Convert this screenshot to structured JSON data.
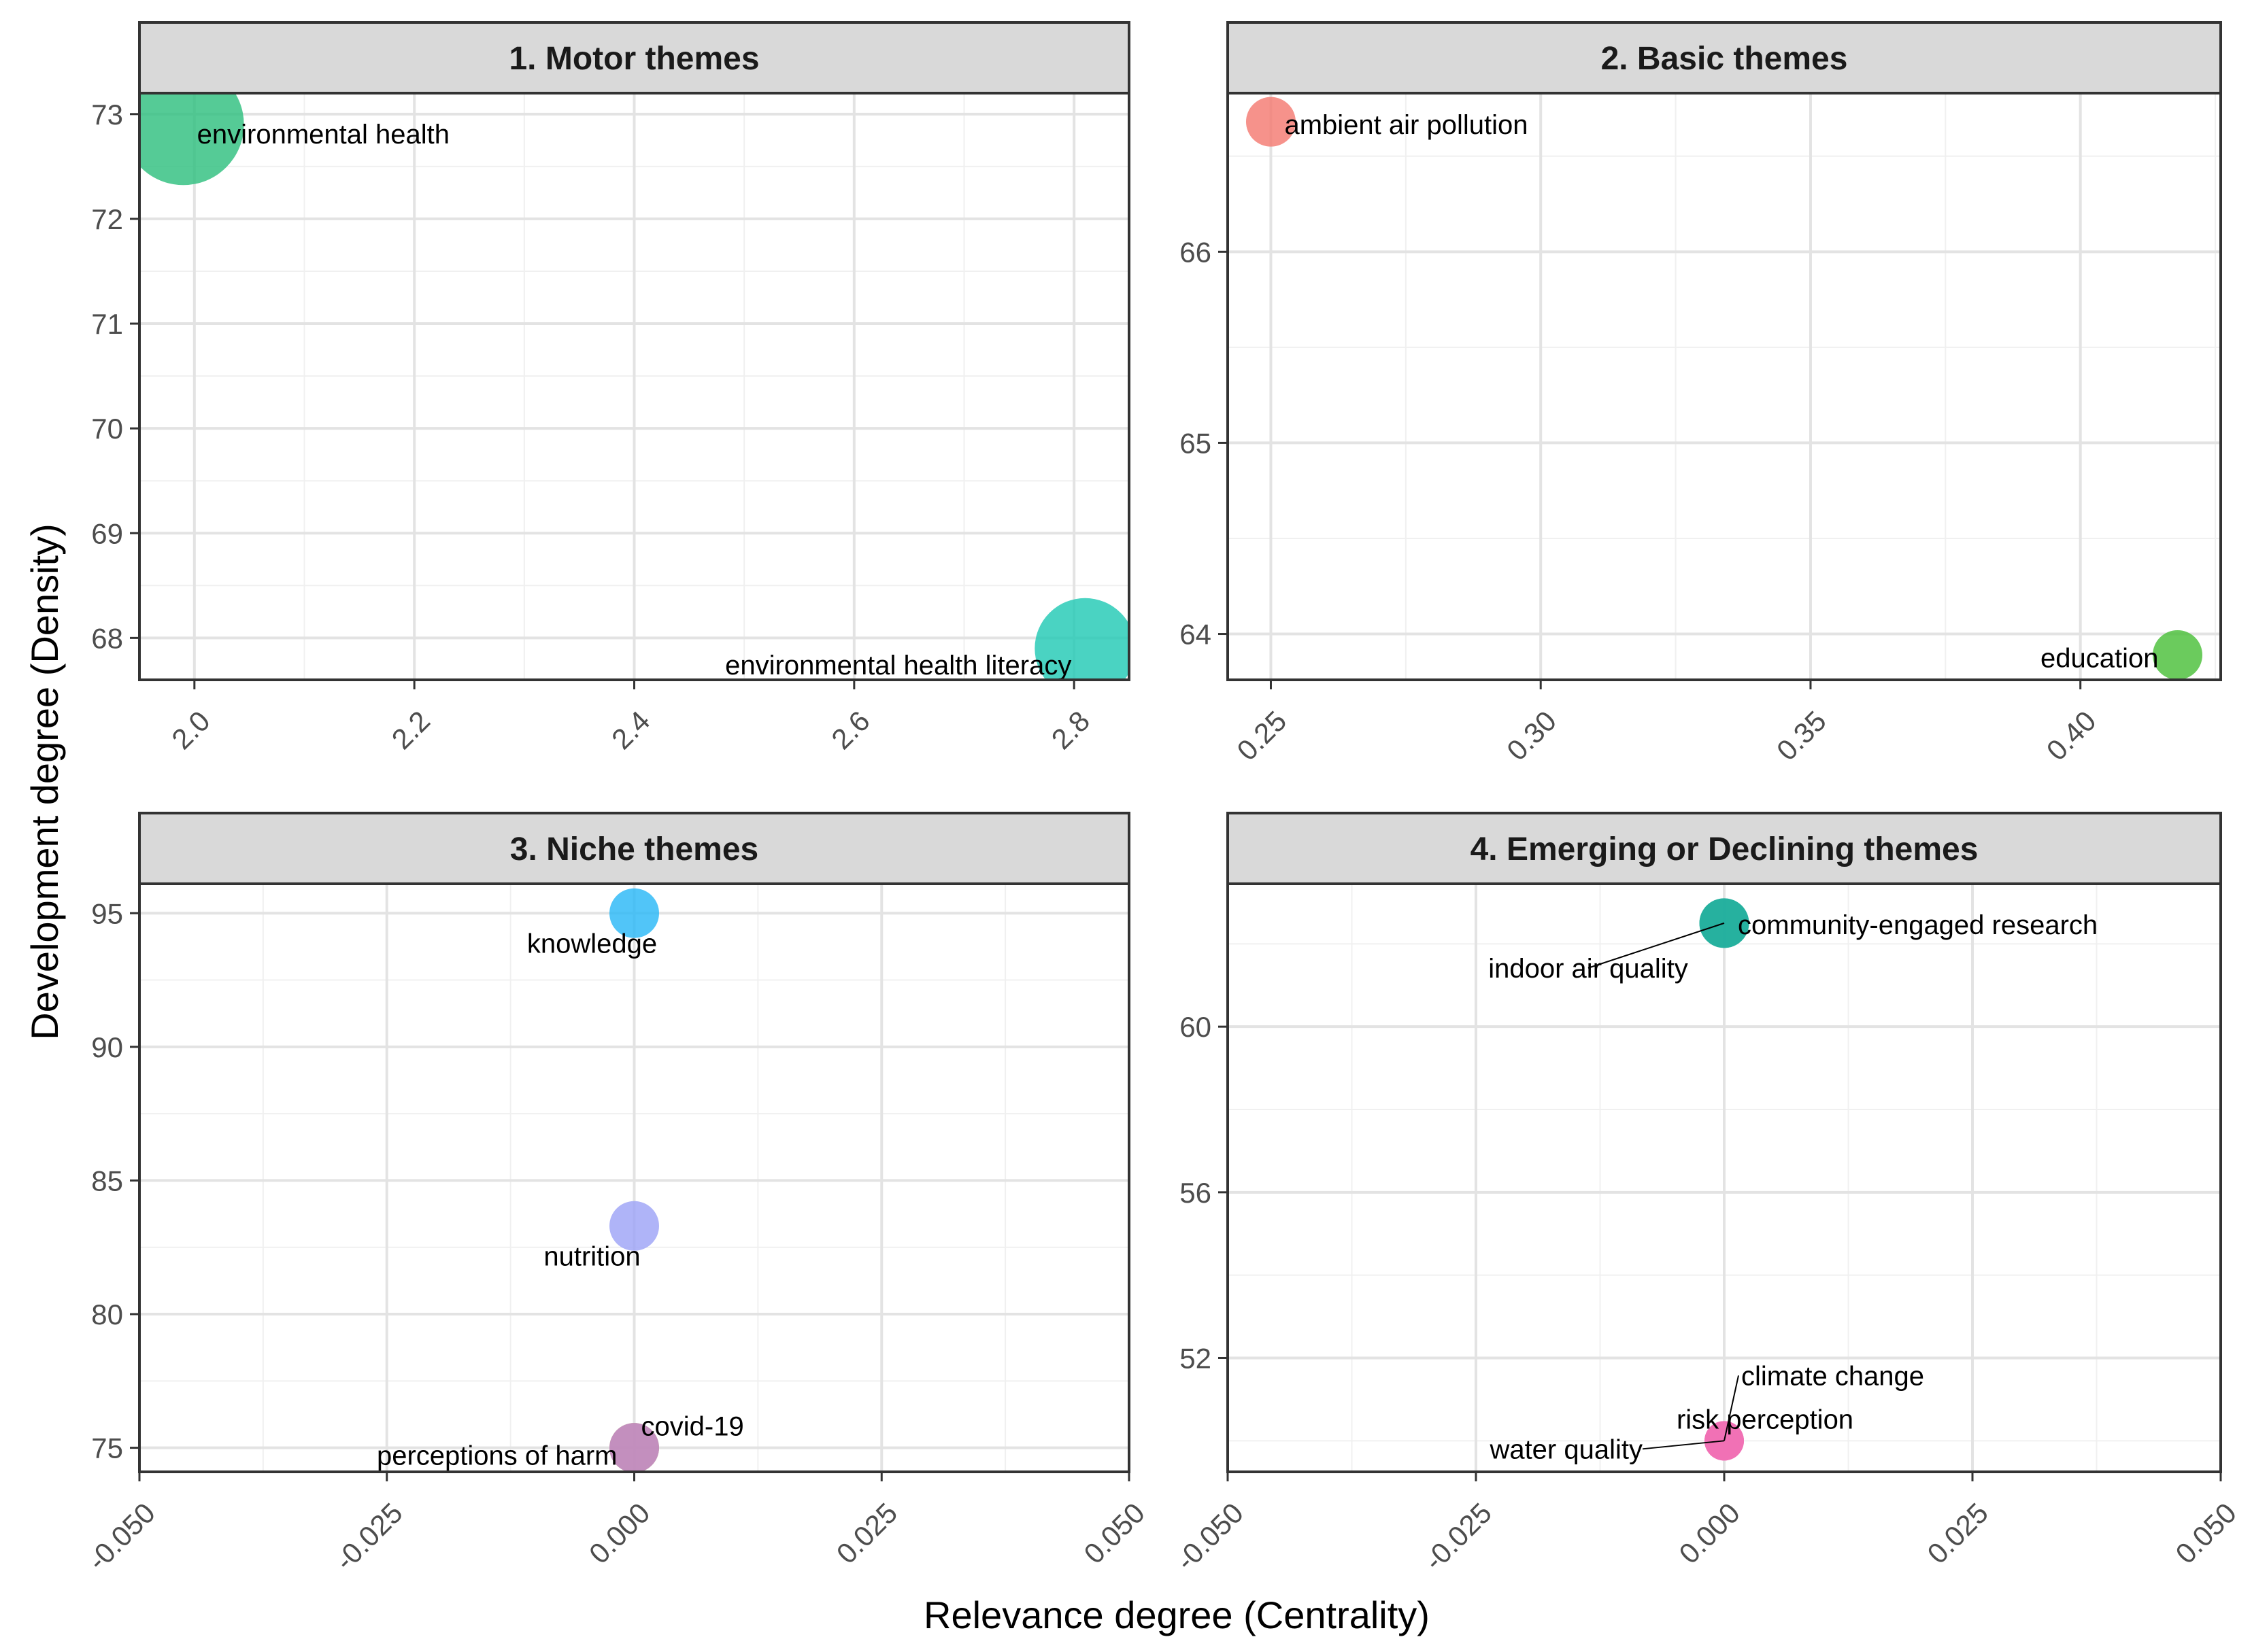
{
  "chart_data": {
    "type": "scatter",
    "xlabel": "Relevance degree (Centrality)",
    "ylabel": "Development degree (Density)",
    "grid": true,
    "legend": "none",
    "panels": [
      {
        "title": "1. Motor themes",
        "xlim": [
          1.95,
          2.85
        ],
        "ylim": [
          67.6,
          73.2
        ],
        "xticks": [
          2.0,
          2.2,
          2.4,
          2.6,
          2.8
        ],
        "xtick_labels": [
          "2.0",
          "2.2",
          "2.4",
          "2.6",
          "2.8"
        ],
        "yticks": [
          68,
          69,
          70,
          71,
          72,
          73
        ],
        "ytick_labels": [
          "68",
          "69",
          "70",
          "71",
          "72",
          "73"
        ],
        "points": [
          {
            "label": "environmental health",
            "x": 1.99,
            "y": 72.9,
            "size": 10,
            "color": "#2fc07f"
          },
          {
            "label": "environmental health literacy",
            "x": 2.81,
            "y": 67.9,
            "size": 8,
            "color": "#22c9b5"
          }
        ]
      },
      {
        "title": "2. Basic themes",
        "xlim": [
          0.242,
          0.426
        ],
        "ylim": [
          63.76,
          66.83
        ],
        "xticks": [
          0.25,
          0.3,
          0.35,
          0.4
        ],
        "xtick_labels": [
          "0.25",
          "0.30",
          "0.35",
          "0.40"
        ],
        "yticks": [
          64,
          65,
          66
        ],
        "ytick_labels": [
          "64",
          "65",
          "66"
        ],
        "points": [
          {
            "label": "ambient air pollution",
            "x": 0.25,
            "y": 66.68,
            "size": 3,
            "color": "#f47a72"
          },
          {
            "label": "education",
            "x": 0.418,
            "y": 63.89,
            "size": 3,
            "color": "#4bbf39"
          }
        ]
      },
      {
        "title": "3. Niche themes",
        "xlim": [
          -0.05,
          0.05
        ],
        "ylim": [
          74.1,
          96.1
        ],
        "xticks": [
          -0.05,
          -0.025,
          0.0,
          0.025,
          0.05
        ],
        "xtick_labels": [
          "-0.050",
          "-0.025",
          "0.000",
          "0.025",
          "0.050"
        ],
        "yticks": [
          75,
          80,
          85,
          90,
          95
        ],
        "ytick_labels": [
          "75",
          "80",
          "85",
          "90",
          "95"
        ],
        "points": [
          {
            "label": "knowledge",
            "x": 0.0,
            "y": 95.0,
            "size": 3,
            "color": "#2bb8f6"
          },
          {
            "label": "nutrition",
            "x": 0.0,
            "y": 83.3,
            "size": 3,
            "color": "#9ea3f7"
          },
          {
            "label": "covid-19",
            "x": 0.0,
            "y": 75.0,
            "size": 3,
            "color": "#a7b12c"
          },
          {
            "label": "perceptions of harm",
            "x": 0.0,
            "y": 75.0,
            "size": 3,
            "color": "#c684d6"
          }
        ]
      },
      {
        "title": "4. Emerging or Declining themes",
        "xlim": [
          -0.05,
          0.05
        ],
        "ylim": [
          49.25,
          63.45
        ],
        "xticks": [
          -0.05,
          -0.025,
          0.0,
          0.025,
          0.05
        ],
        "xtick_labels": [
          "-0.050",
          "-0.025",
          "0.000",
          "0.025",
          "0.050"
        ],
        "yticks": [
          52,
          56,
          60
        ],
        "ytick_labels": [
          "52",
          "56",
          "60"
        ],
        "points": [
          {
            "label": "community-engaged research",
            "x": 0.0,
            "y": 62.5,
            "size": 3,
            "color": "#1fae9c"
          },
          {
            "label": "indoor air quality",
            "x": 0.0,
            "y": 62.5,
            "size": 3,
            "color": "#1fae9c"
          },
          {
            "label": "climate change",
            "x": 0.0,
            "y": 50.0,
            "size": 2,
            "color": "#f070b4"
          },
          {
            "label": "risk perception",
            "x": 0.0,
            "y": 50.0,
            "size": 2,
            "color": "#f070b4"
          },
          {
            "label": "water quality",
            "x": 0.0,
            "y": 50.0,
            "size": 2,
            "color": "#f070b4"
          }
        ]
      }
    ]
  }
}
